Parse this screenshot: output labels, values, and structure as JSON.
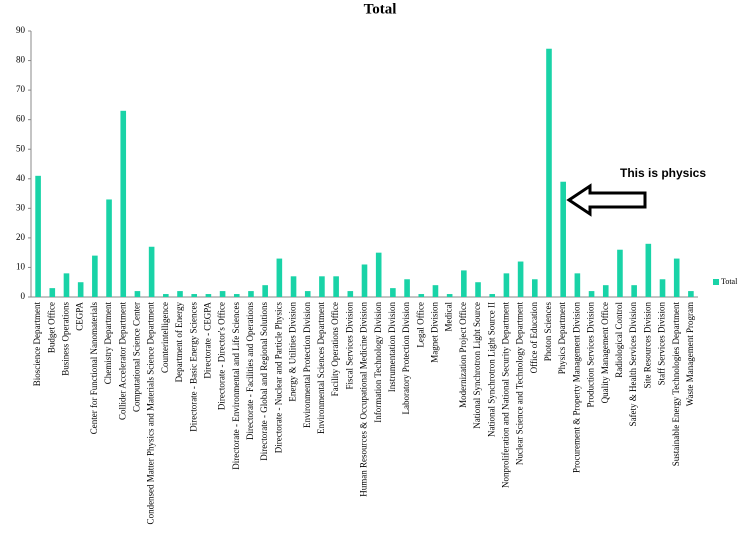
{
  "chart_data": {
    "type": "bar",
    "title": "Total",
    "categories": [
      "Bioscience Department",
      "Budget Office",
      "Business Operations",
      "CEGPA",
      "Center for Functional Nanomaterials",
      "Chemistry Department",
      "Collider Accelerator Department",
      "Computational Science Center",
      "Condensed Matter Physics and Materials Science Department",
      "Counterintelligence",
      "Department of Energy",
      "Directorate - Basic Energy Sciences",
      "Directorate - CEGPA",
      "Directorate - Director's Office",
      "Directorate - Environmental and Life Sciences",
      "Directorate - Facilities and Operations",
      "Directorate - Global and Regional Solutions",
      "Directorate - Nuclear and Particle Physics",
      "Energy & Utilities Division",
      "Environmental Protection Division",
      "Environmental Sciences Department",
      "Facility Operations Office",
      "Fiscal Services Division",
      "Human Resources & Occupational Medicine Division",
      "Information Technology Division",
      "Instrumentation Division",
      "Laboratory Protection Division",
      "Legal Office",
      "Magnet Division",
      "Medical",
      "Modernization Project Office",
      "National Synchrotron Light Source",
      "National Synchrotron Light Source II",
      "Nonproliferation and National Security Department",
      "Nuclear Science and Technology Department",
      "Office of Education",
      "Photon Sciences",
      "Physics Department",
      "Procurement & Property Management Division",
      "Production Services Division",
      "Quality Management Office",
      "Radiological Control",
      "Safety & Health Services Division",
      "Site Resources Division",
      "Staff Services Division",
      "Sustainable Energy Technologies Department",
      "Waste Management Program"
    ],
    "series": [
      {
        "name": "Total",
        "color": "#19d3a7",
        "values": [
          41,
          3,
          8,
          5,
          14,
          33,
          63,
          2,
          17,
          1,
          2,
          1,
          1,
          2,
          1,
          2,
          4,
          13,
          7,
          2,
          7,
          7,
          2,
          11,
          15,
          3,
          6,
          1,
          4,
          1,
          9,
          5,
          1,
          8,
          12,
          6,
          84,
          39,
          8,
          2,
          4,
          16,
          4,
          18,
          6,
          13,
          2
        ]
      }
    ],
    "ylim": [
      0,
      90
    ],
    "yticks": [
      0,
      10,
      20,
      30,
      40,
      50,
      60,
      70,
      80,
      90
    ],
    "grid": false,
    "legend": "right",
    "annotation": "This is physics"
  }
}
